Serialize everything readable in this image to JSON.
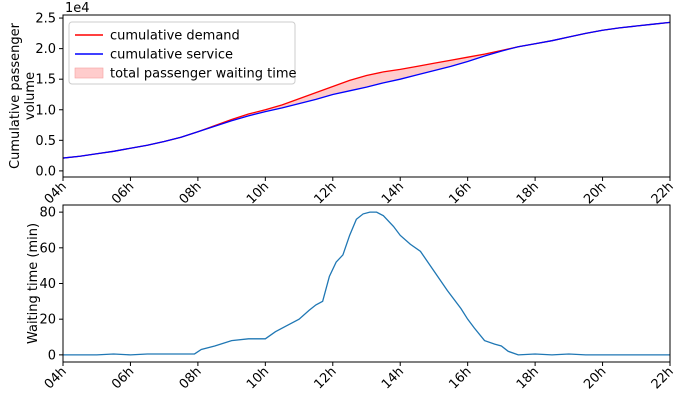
{
  "chart_data": [
    {
      "type": "line",
      "ylabel": "Cumulative passenger\nvolume",
      "offset_label": "1e4",
      "x_ticks": [
        "04h",
        "06h",
        "08h",
        "10h",
        "12h",
        "14h",
        "16h",
        "18h",
        "20h",
        "22h"
      ],
      "x_unit": "hour",
      "xlim": [
        4,
        22
      ],
      "ylim": [
        -0.1,
        2.55
      ],
      "y_ticks": [
        "0.0",
        "0.5",
        "1.0",
        "1.5",
        "2.0",
        "2.5"
      ],
      "y_tick_values": [
        0.0,
        0.5,
        1.0,
        1.5,
        2.0,
        2.5
      ],
      "legend_position": "upper-left",
      "x": [
        4,
        4.5,
        5,
        5.5,
        6,
        6.5,
        7,
        7.5,
        8,
        8.5,
        9,
        9.5,
        10,
        10.5,
        11,
        11.5,
        12,
        12.5,
        13,
        13.5,
        14,
        14.5,
        15,
        15.5,
        16,
        16.5,
        17,
        17.5,
        18,
        18.5,
        19,
        19.5,
        20,
        20.5,
        21,
        21.5,
        22
      ],
      "series": [
        {
          "name": "cumulative demand",
          "color": "#ff0000",
          "values": [
            0.21,
            0.24,
            0.28,
            0.32,
            0.37,
            0.42,
            0.48,
            0.55,
            0.64,
            0.74,
            0.84,
            0.93,
            1.0,
            1.08,
            1.18,
            1.28,
            1.38,
            1.48,
            1.56,
            1.62,
            1.66,
            1.71,
            1.76,
            1.81,
            1.86,
            1.91,
            1.97,
            2.03,
            2.08,
            2.13,
            2.19,
            2.25,
            2.3,
            2.34,
            2.37,
            2.4,
            2.43
          ]
        },
        {
          "name": "cumulative service",
          "color": "#0000ff",
          "values": [
            0.21,
            0.24,
            0.28,
            0.32,
            0.37,
            0.42,
            0.48,
            0.55,
            0.64,
            0.73,
            0.82,
            0.9,
            0.97,
            1.03,
            1.1,
            1.17,
            1.25,
            1.31,
            1.37,
            1.44,
            1.5,
            1.57,
            1.64,
            1.71,
            1.79,
            1.88,
            1.96,
            2.03,
            2.08,
            2.13,
            2.19,
            2.25,
            2.3,
            2.34,
            2.37,
            2.4,
            2.43
          ]
        }
      ],
      "fill": {
        "name": "total passenger waiting time",
        "color": "#ffcccc",
        "between": [
          "cumulative demand",
          "cumulative service"
        ]
      }
    },
    {
      "type": "line",
      "ylabel": "Waiting time (min)",
      "x_ticks": [
        "04h",
        "06h",
        "08h",
        "10h",
        "12h",
        "14h",
        "16h",
        "18h",
        "20h",
        "22h"
      ],
      "x_unit": "hour",
      "xlim": [
        4,
        22
      ],
      "ylim": [
        -4,
        84
      ],
      "y_ticks": [
        "0",
        "20",
        "40",
        "60",
        "80"
      ],
      "y_tick_values": [
        0,
        20,
        40,
        60,
        80
      ],
      "series": [
        {
          "color": "#1f77b4",
          "x": [
            4,
            5,
            5.5,
            6,
            6.5,
            7,
            7.5,
            7.9,
            8.1,
            8.5,
            9,
            9.5,
            10,
            10.3,
            10.6,
            11,
            11.3,
            11.5,
            11.7,
            11.9,
            12.1,
            12.3,
            12.5,
            12.7,
            12.9,
            13.1,
            13.3,
            13.5,
            13.8,
            14,
            14.3,
            14.6,
            15,
            15.4,
            15.8,
            16,
            16.2,
            16.5,
            16.8,
            17,
            17.2,
            17.5,
            18,
            18.5,
            19,
            19.5,
            20,
            21,
            22
          ],
          "values": [
            0,
            0,
            0.5,
            0,
            0.5,
            0.5,
            0.5,
            0.5,
            3,
            5,
            8,
            9,
            9,
            13,
            16,
            20,
            25,
            28,
            30,
            44,
            52,
            56,
            67,
            76,
            79,
            80,
            80,
            78,
            72,
            67,
            62,
            58,
            47,
            36,
            26,
            20,
            15,
            8,
            6,
            5,
            2,
            0,
            0.5,
            0,
            0.5,
            0,
            0,
            0,
            0
          ]
        }
      ]
    }
  ]
}
